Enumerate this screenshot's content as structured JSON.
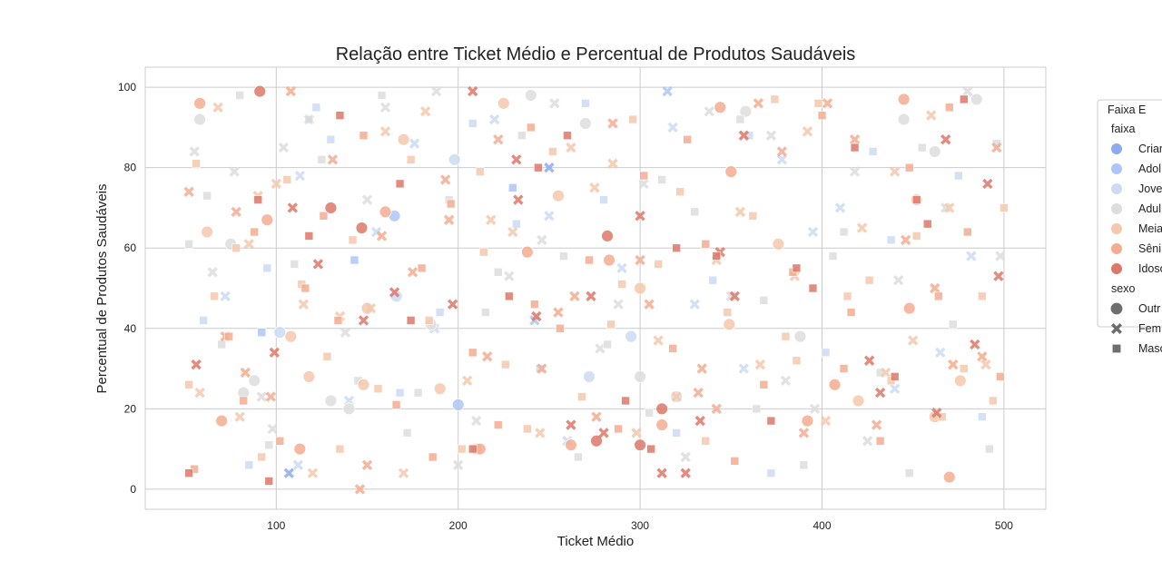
{
  "chart_data": {
    "type": "scatter",
    "title": "Relação entre Ticket Médio e Percentual de Produtos Saudáveis",
    "xlabel": "Ticket Médio",
    "ylabel": "Percentual de Produtos Saudáveis",
    "xlim": [
      28,
      523
    ],
    "ylim": [
      -5,
      105
    ],
    "x_ticks": [
      100,
      200,
      300,
      400,
      500
    ],
    "y_ticks": [
      0,
      20,
      40,
      60,
      80,
      100
    ],
    "grid": true,
    "legend": {
      "placement": "outside-right",
      "title": "Faixa E",
      "hue_header": "faixa",
      "hue_entries": [
        {
          "label": "Crian",
          "color": "#8daaf0"
        },
        {
          "label": "Adol",
          "color": "#adc5f7"
        },
        {
          "label": "Jove",
          "color": "#ccdaf4"
        },
        {
          "label": "Adul",
          "color": "#dddddd"
        },
        {
          "label": "Meia",
          "color": "#f4c8ad"
        },
        {
          "label": "Sêni",
          "color": "#f3ac91"
        },
        {
          "label": "Idoso",
          "color": "#dd7869"
        }
      ],
      "style_header": "sexo",
      "style_entries": [
        {
          "label": "Outr",
          "marker": "circle"
        },
        {
          "label": "Fem",
          "marker": "x"
        },
        {
          "label": "Masc",
          "marker": "square"
        }
      ]
    },
    "series": [
      {
        "faixa": "Crian",
        "sexo": "Fem",
        "x": [
          107,
          250
        ],
        "y": [
          4,
          80
        ]
      },
      {
        "faixa": "Adol",
        "sexo": "Outr",
        "x": [
          165,
          200
        ],
        "y": [
          68,
          21
        ]
      },
      {
        "faixa": "Adol",
        "sexo": "Fem",
        "x": [
          118,
          315,
          242
        ],
        "y": [
          92,
          99,
          42
        ]
      },
      {
        "faixa": "Adol",
        "sexo": "Masc",
        "x": [
          143,
          230,
          92
        ],
        "y": [
          57,
          75,
          39
        ]
      },
      {
        "faixa": "Jove",
        "sexo": "Outr",
        "x": [
          198,
          102,
          295,
          272,
          166
        ],
        "y": [
          82,
          39,
          38,
          28,
          48
        ]
      },
      {
        "faixa": "Jove",
        "sexo": "Fem",
        "x": [
          72,
          113,
          155,
          187,
          220,
          250,
          290,
          318,
          357,
          378,
          395,
          440,
          482,
          112,
          140,
          176,
          260,
          330,
          410,
          465
        ],
        "y": [
          48,
          78,
          64,
          40,
          92,
          68,
          55,
          90,
          30,
          82,
          64,
          25,
          58,
          6,
          22,
          86,
          12,
          46,
          70,
          34
        ]
      },
      {
        "faixa": "Jove",
        "sexo": "Masc",
        "x": [
          60,
          95,
          130,
          168,
          208,
          245,
          280,
          320,
          360,
          402,
          438,
          475,
          85,
          122,
          190,
          232,
          270,
          340,
          372,
          428,
          488
        ],
        "y": [
          42,
          55,
          87,
          24,
          91,
          30,
          72,
          14,
          88,
          34,
          62,
          78,
          6,
          95,
          44,
          66,
          96,
          52,
          4,
          84,
          18
        ]
      },
      {
        "faixa": "Adul",
        "sexo": "Outr",
        "x": [
          58,
          75,
          82,
          88,
          140,
          185,
          240,
          270,
          320,
          358,
          445,
          462,
          485,
          130,
          300,
          388
        ],
        "y": [
          92,
          61,
          24,
          27,
          20,
          41,
          98,
          91,
          23,
          94,
          92,
          84,
          97,
          22,
          28,
          38
        ]
      },
      {
        "faixa": "Adul",
        "sexo": "Fem",
        "x": [
          65,
          77,
          92,
          104,
          138,
          160,
          188,
          210,
          228,
          253,
          278,
          302,
          325,
          350,
          372,
          396,
          418,
          442,
          468,
          498,
          55,
          98,
          150,
          200,
          246,
          288,
          338,
          380,
          425,
          480
        ],
        "y": [
          54,
          79,
          23,
          85,
          39,
          95,
          99,
          17,
          53,
          96,
          35,
          76,
          8,
          48,
          88,
          20,
          79,
          52,
          70,
          58,
          84,
          15,
          72,
          6,
          62,
          46,
          94,
          27,
          12,
          99
        ]
      },
      {
        "faixa": "Adul",
        "sexo": "Masc",
        "x": [
          52,
          62,
          80,
          96,
          110,
          125,
          145,
          158,
          172,
          195,
          215,
          235,
          258,
          282,
          305,
          330,
          355,
          368,
          390,
          412,
          432,
          455,
          472,
          492,
          70,
          118,
          178,
          222,
          266,
          312,
          364,
          406,
          448,
          496
        ],
        "y": [
          61,
          73,
          98,
          11,
          56,
          82,
          27,
          98,
          14,
          72,
          44,
          88,
          58,
          36,
          19,
          69,
          92,
          47,
          6,
          64,
          29,
          85,
          41,
          10,
          36,
          92,
          24,
          54,
          8,
          77,
          20,
          58,
          4,
          86
        ]
      },
      {
        "faixa": "Meia",
        "sexo": "Outr",
        "x": [
          62,
          108,
          118,
          148,
          170,
          190,
          210,
          255,
          300,
          349,
          376,
          420,
          452,
          462,
          476,
          225,
          150
        ],
        "y": [
          64,
          38,
          28,
          26,
          87,
          25,
          10,
          73,
          50,
          41,
          61,
          22,
          72,
          18,
          27,
          96,
          45
        ]
      },
      {
        "faixa": "Meia",
        "sexo": "Fem",
        "x": [
          58,
          68,
          90,
          100,
          120,
          152,
          182,
          205,
          218,
          262,
          275,
          298,
          342,
          366,
          392,
          402,
          422,
          450,
          460,
          490,
          80,
          135,
          170,
          230,
          285,
          320,
          385,
          435,
          470,
          85,
          115,
          160,
          245,
          310,
          355,
          440
        ],
        "y": [
          24,
          95,
          73,
          76,
          4,
          45,
          94,
          27,
          67,
          85,
          75,
          14,
          57,
          31,
          89,
          17,
          65,
          37,
          93,
          31,
          18,
          43,
          4,
          64,
          81,
          23,
          53,
          29,
          70,
          61,
          46,
          89,
          14,
          37,
          69,
          79
        ]
      },
      {
        "faixa": "Meia",
        "sexo": "Masc",
        "x": [
          52,
          66,
          78,
          92,
          106,
          114,
          128,
          142,
          156,
          174,
          184,
          202,
          214,
          226,
          238,
          252,
          268,
          284,
          296,
          310,
          322,
          336,
          348,
          362,
          374,
          386,
          398,
          414,
          426,
          438,
          452,
          466,
          478,
          494,
          500,
          56,
          135,
          212,
          290,
          380,
          488
        ],
        "y": [
          26,
          48,
          60,
          8,
          77,
          51,
          33,
          62,
          25,
          82,
          42,
          10,
          59,
          31,
          15,
          84,
          23,
          41,
          92,
          56,
          74,
          12,
          44,
          68,
          97,
          32,
          96,
          48,
          52,
          27,
          63,
          18,
          30,
          22,
          70,
          81,
          10,
          79,
          51,
          38,
          48
        ]
      },
      {
        "faixa": "Sêni",
        "sexo": "Outr",
        "x": [
          58,
          70,
          95,
          113,
          160,
          212,
          238,
          262,
          283,
          312,
          344,
          350,
          392,
          407,
          445,
          448,
          470
        ],
        "y": [
          96,
          17,
          67,
          10,
          69,
          10,
          59,
          11,
          57,
          16,
          95,
          79,
          17,
          26,
          97,
          45,
          3
        ]
      },
      {
        "faixa": "Sêni",
        "sexo": "Fem",
        "x": [
          52,
          83,
          97,
          108,
          131,
          146,
          175,
          193,
          222,
          246,
          264,
          285,
          305,
          334,
          365,
          390,
          418,
          446,
          472,
          496,
          72,
          158,
          216,
          276,
          342,
          403,
          462,
          78,
          150,
          195,
          255,
          300,
          332,
          378,
          430,
          488
        ],
        "y": [
          74,
          29,
          23,
          99,
          82,
          0,
          54,
          77,
          87,
          30,
          48,
          91,
          46,
          30,
          96,
          14,
          87,
          62,
          31,
          85,
          38,
          63,
          33,
          18,
          20,
          96,
          50,
          69,
          6,
          67,
          44,
          57,
          24,
          84,
          16,
          33
        ]
      },
      {
        "faixa": "Sêni",
        "sexo": "Masc",
        "x": [
          55,
          74,
          88,
          102,
          116,
          134,
          148,
          166,
          180,
          196,
          208,
          222,
          240,
          256,
          272,
          288,
          302,
          318,
          336,
          352,
          368,
          384,
          400,
          416,
          432,
          448,
          464,
          480,
          498,
          82,
          126,
          186,
          242,
          326,
          412,
          470
        ],
        "y": [
          5,
          38,
          64,
          12,
          50,
          42,
          88,
          21,
          55,
          71,
          34,
          16,
          90,
          40,
          57,
          15,
          78,
          35,
          61,
          7,
          26,
          54,
          93,
          44,
          12,
          80,
          48,
          64,
          28,
          22,
          68,
          8,
          46,
          87,
          30,
          95
        ]
      },
      {
        "faixa": "Idoso",
        "sexo": "Outr",
        "x": [
          91,
          147,
          276,
          300,
          312,
          282,
          130
        ],
        "y": [
          99,
          65,
          12,
          11,
          20,
          63,
          70
        ]
      },
      {
        "faixa": "Idoso",
        "sexo": "Fem",
        "x": [
          56,
          99,
          109,
          123,
          148,
          197,
          208,
          233,
          243,
          262,
          273,
          300,
          312,
          325,
          333,
          344,
          357,
          432,
          468,
          484,
          491,
          497,
          165,
          232,
          280,
          352,
          426,
          463
        ],
        "y": [
          31,
          34,
          70,
          56,
          42,
          46,
          99,
          72,
          43,
          16,
          48,
          68,
          4,
          4,
          17,
          59,
          88,
          24,
          87,
          36,
          76,
          53,
          49,
          82,
          14,
          48,
          32,
          19
        ]
      },
      {
        "faixa": "Idoso",
        "sexo": "Masc",
        "x": [
          52,
          90,
          118,
          135,
          168,
          208,
          228,
          260,
          292,
          320,
          342,
          372,
          395,
          418,
          440,
          458,
          478,
          96,
          174,
          244,
          306,
          386,
          452
        ],
        "y": [
          4,
          72,
          63,
          93,
          76,
          10,
          48,
          88,
          22,
          60,
          58,
          17,
          50,
          85,
          28,
          66,
          97,
          2,
          42,
          80,
          10,
          55,
          72
        ]
      }
    ]
  }
}
